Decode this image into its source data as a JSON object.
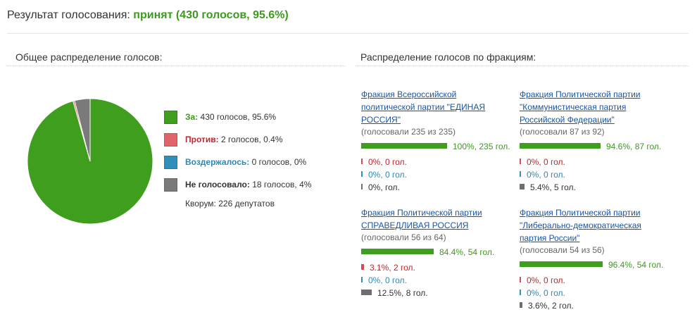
{
  "header": {
    "label": "Результат голосования:",
    "result": "принят (430 голосов, 95.6%)"
  },
  "overall": {
    "heading": "Общее распределение голосов:",
    "legend": [
      {
        "label": "За:",
        "value": "430 голосов, 95.6%",
        "color": "#3f9e1e",
        "label_color": "#3c9a1c"
      },
      {
        "label": "Против:",
        "value": "2 голосов, 0.4%",
        "color": "#e06469",
        "label_color": "#c0272d"
      },
      {
        "label": "Воздержалось:",
        "value": "0 голосов, 0%",
        "color": "#2f8fba",
        "label_color": "#2d86b3"
      },
      {
        "label": "Не голосовало:",
        "value": "18 голосов, 4%",
        "color": "#7a7a7a",
        "label_color": "#333333"
      }
    ],
    "quorum": "Кворум: 226 депутатов",
    "pie": [
      {
        "name": "За",
        "percent": 95.6,
        "color": "#3f9e1e"
      },
      {
        "name": "Против",
        "percent": 0.4,
        "color": "#e06469"
      },
      {
        "name": "Воздержалось",
        "percent": 0,
        "color": "#2f8fba"
      },
      {
        "name": "Не голосовало",
        "percent": 4,
        "color": "#7a7a7a"
      }
    ]
  },
  "factions": {
    "heading": "Распределение голосов по фракциям:",
    "items": [
      {
        "name": "Фракция Всероссийской политической партии \"ЕДИНАЯ РОССИЯ\"",
        "voted": "(голосовали 235 из 235)",
        "rows": [
          {
            "type": "yes",
            "fraction": 1.0,
            "text": "100%, 235 гол."
          },
          {
            "type": "no",
            "fraction": 0,
            "text": "0%, 0 гол."
          },
          {
            "type": "abst",
            "fraction": 0,
            "text": "0%, 0 гол."
          },
          {
            "type": "absent",
            "fraction": 0,
            "text": "0%, гол."
          }
        ]
      },
      {
        "name": "Фракция Политической партии \"Коммунистическая партия Российской Федерации\"",
        "voted": "(голосовали 87 из 92)",
        "rows": [
          {
            "type": "yes",
            "fraction": 0.946,
            "text": "94.6%, 87 гол."
          },
          {
            "type": "no",
            "fraction": 0,
            "text": "0%, 0 гол."
          },
          {
            "type": "abst",
            "fraction": 0,
            "text": "0%, 0 гол."
          },
          {
            "type": "absent",
            "fraction": 0.054,
            "text": "5.4%, 5 гол."
          }
        ]
      },
      {
        "name": "Фракция Политической партии СПРАВЕДЛИВАЯ РОССИЯ",
        "voted": "(голосовали 56 из 64)",
        "rows": [
          {
            "type": "yes",
            "fraction": 0.844,
            "text": "84.4%, 54 гол."
          },
          {
            "type": "no",
            "fraction": 0.031,
            "text": "3.1%, 2 гол."
          },
          {
            "type": "abst",
            "fraction": 0,
            "text": "0%, 0 гол."
          },
          {
            "type": "absent",
            "fraction": 0.125,
            "text": "12.5%, 8 гол."
          }
        ]
      },
      {
        "name": "Фракция Политической партии \"Либерально-демократическая партия России\"",
        "voted": "(голосовали 54 из 56)",
        "rows": [
          {
            "type": "yes",
            "fraction": 0.964,
            "text": "96.4%, 54 гол."
          },
          {
            "type": "no",
            "fraction": 0,
            "text": "0%, 0 гол."
          },
          {
            "type": "abst",
            "fraction": 0,
            "text": "0%, 0 гол."
          },
          {
            "type": "absent",
            "fraction": 0.036,
            "text": "3.6%, 2 гол."
          }
        ]
      }
    ],
    "colors": {
      "yes": "#3f9e1e",
      "no": "#d94a4f",
      "abst": "#2f8fba",
      "absent": "#6e6e6e"
    }
  }
}
